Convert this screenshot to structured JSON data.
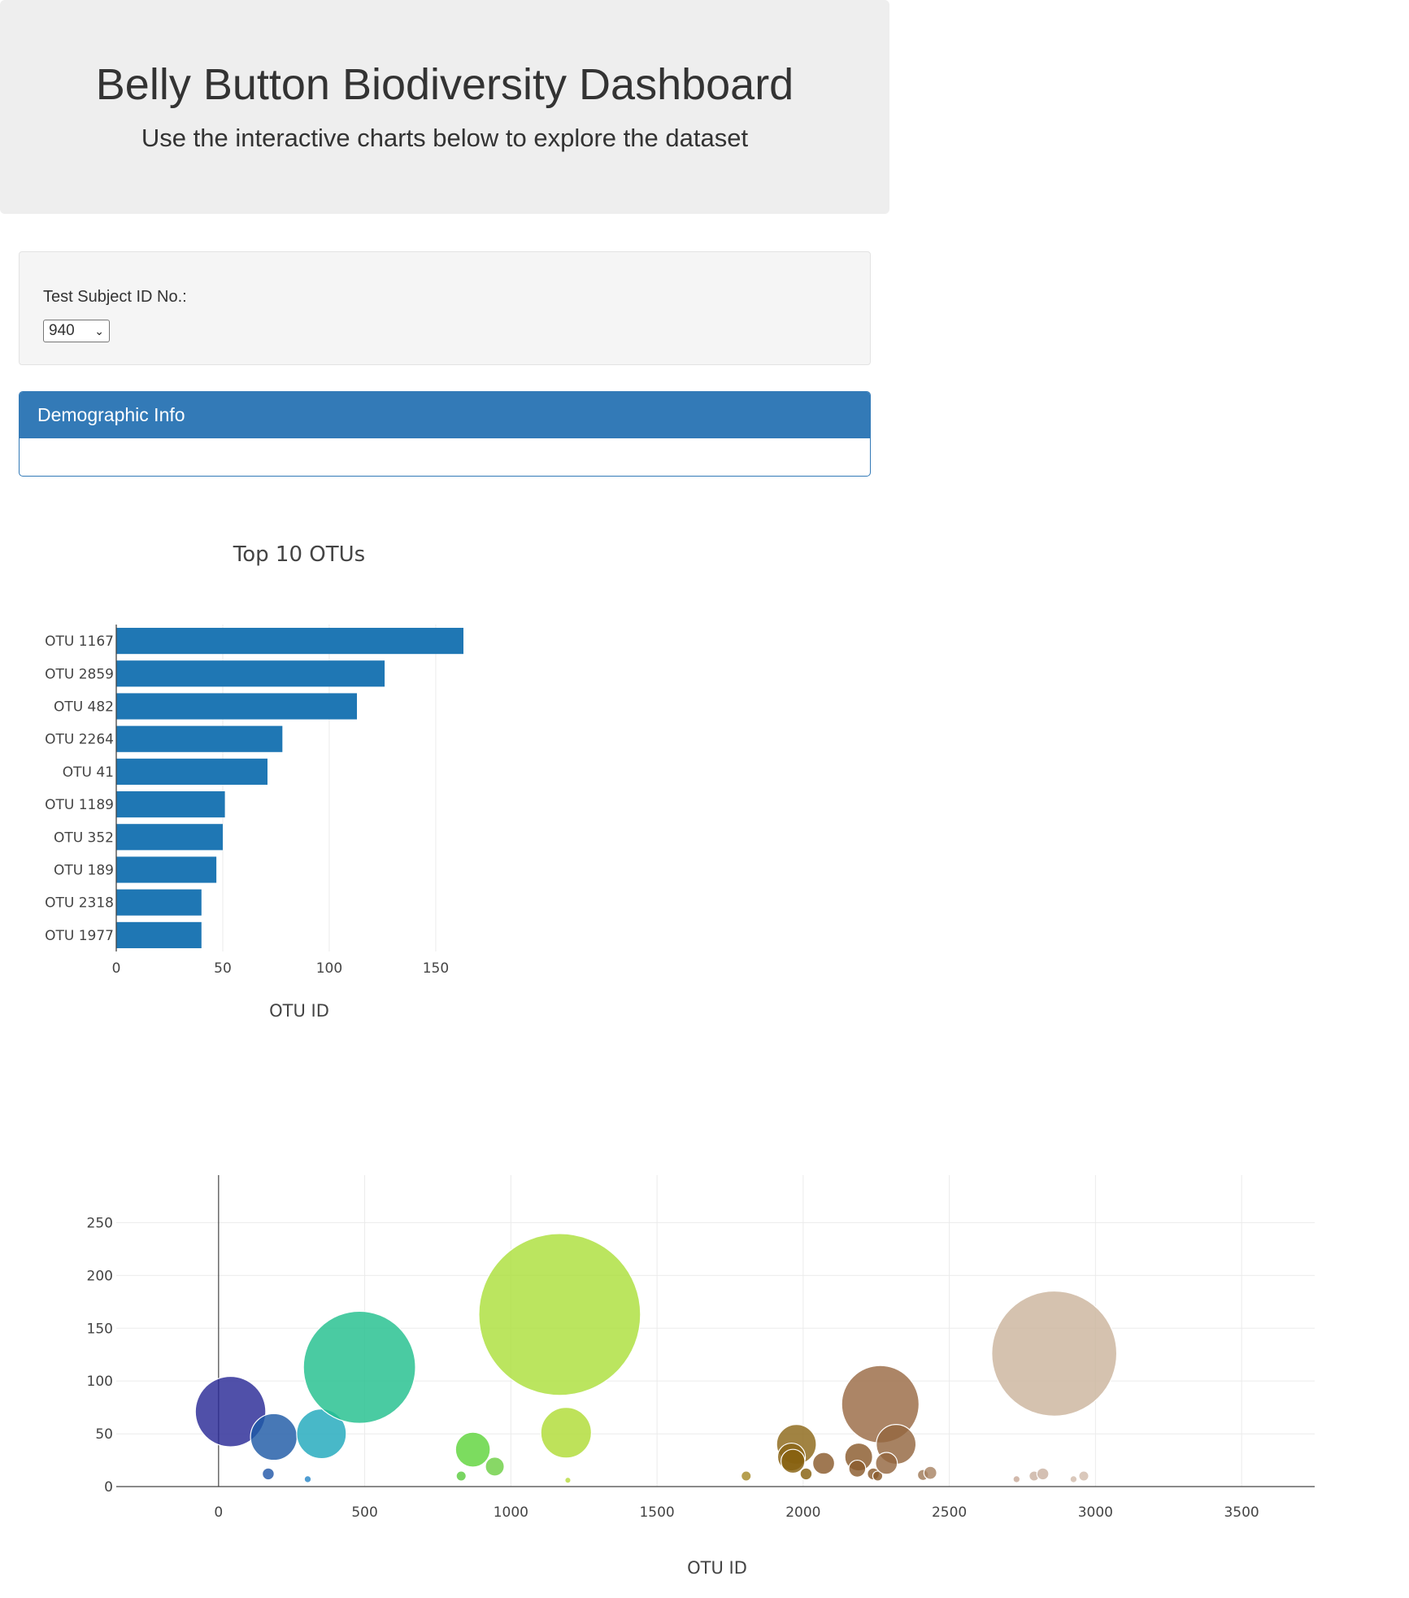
{
  "header": {
    "title": "Belly Button Biodiversity Dashboard",
    "subtitle": "Use the interactive charts below to explore the dataset"
  },
  "selector": {
    "label": "Test Subject ID No.:",
    "selected_value": "940"
  },
  "demographic_panel": {
    "title": "Demographic Info"
  },
  "chart_data": [
    {
      "type": "bar",
      "orientation": "horizontal",
      "title": "Top 10 OTUs",
      "xlabel": "OTU ID",
      "ylabel": "",
      "categories": [
        "OTU 1167",
        "OTU 2859",
        "OTU 482",
        "OTU 2264",
        "OTU 41",
        "OTU 1189",
        "OTU 352",
        "OTU 189",
        "OTU 2318",
        "OTU 1977"
      ],
      "values": [
        163,
        126,
        113,
        78,
        71,
        51,
        50,
        47,
        40,
        40
      ],
      "xlim": [
        0,
        163
      ],
      "xticks": [
        0,
        50,
        100,
        150
      ],
      "color": "#1f77b4",
      "grid": true
    },
    {
      "type": "scatter",
      "variant": "bubble",
      "title": "",
      "xlabel": "OTU ID",
      "ylabel": "",
      "xlim": [
        -350,
        3750
      ],
      "ylim": [
        0,
        295
      ],
      "xticks": [
        0,
        500,
        1000,
        1500,
        2000,
        2500,
        3000,
        3500
      ],
      "yticks": [
        0,
        50,
        100,
        150,
        200,
        250
      ],
      "grid": true,
      "points": [
        {
          "x": 41,
          "y": 71,
          "size": 71,
          "color": "#2a2a96"
        },
        {
          "x": 189,
          "y": 47,
          "size": 47,
          "color": "#1f5aa6"
        },
        {
          "x": 170,
          "y": 12,
          "size": 12,
          "color": "#2258a8"
        },
        {
          "x": 305,
          "y": 7,
          "size": 7,
          "color": "#2a88c8"
        },
        {
          "x": 352,
          "y": 50,
          "size": 50,
          "color": "#20a8bc"
        },
        {
          "x": 482,
          "y": 113,
          "size": 113,
          "color": "#22c08e"
        },
        {
          "x": 870,
          "y": 35,
          "size": 35,
          "color": "#5fd43c"
        },
        {
          "x": 945,
          "y": 19,
          "size": 19,
          "color": "#6ed044"
        },
        {
          "x": 830,
          "y": 10,
          "size": 10,
          "color": "#5ccc40"
        },
        {
          "x": 1167,
          "y": 163,
          "size": 163,
          "color": "#acdf3c"
        },
        {
          "x": 1189,
          "y": 51,
          "size": 51,
          "color": "#b0dc36"
        },
        {
          "x": 1195,
          "y": 6,
          "size": 6,
          "color": "#b8dc40"
        },
        {
          "x": 1805,
          "y": 10,
          "size": 10,
          "color": "#a68a28"
        },
        {
          "x": 1977,
          "y": 40,
          "size": 40,
          "color": "#8c6818"
        },
        {
          "x": 1960,
          "y": 28,
          "size": 28,
          "color": "#8a6416"
        },
        {
          "x": 1965,
          "y": 24,
          "size": 24,
          "color": "#86600f"
        },
        {
          "x": 2010,
          "y": 12,
          "size": 12,
          "color": "#86600f"
        },
        {
          "x": 2070,
          "y": 22,
          "size": 22,
          "color": "#8a5a2c"
        },
        {
          "x": 2190,
          "y": 28,
          "size": 28,
          "color": "#8a5a2c"
        },
        {
          "x": 2185,
          "y": 17,
          "size": 17,
          "color": "#8a5a2c"
        },
        {
          "x": 2240,
          "y": 12,
          "size": 12,
          "color": "#8a5a2c"
        },
        {
          "x": 2255,
          "y": 10,
          "size": 10,
          "color": "#8a5a2c"
        },
        {
          "x": 2264,
          "y": 78,
          "size": 78,
          "color": "#9a6a44"
        },
        {
          "x": 2318,
          "y": 40,
          "size": 40,
          "color": "#946640"
        },
        {
          "x": 2285,
          "y": 22,
          "size": 22,
          "color": "#946640"
        },
        {
          "x": 2410,
          "y": 11,
          "size": 11,
          "color": "#a07a58"
        },
        {
          "x": 2435,
          "y": 13,
          "size": 13,
          "color": "#a88464"
        },
        {
          "x": 2730,
          "y": 7,
          "size": 7,
          "color": "#c8aa98"
        },
        {
          "x": 2790,
          "y": 10,
          "size": 10,
          "color": "#cbb2a2"
        },
        {
          "x": 2820,
          "y": 12,
          "size": 12,
          "color": "#cbb2a2"
        },
        {
          "x": 2859,
          "y": 126,
          "size": 126,
          "color": "#ccb49e"
        },
        {
          "x": 2925,
          "y": 7,
          "size": 7,
          "color": "#d2bcac"
        },
        {
          "x": 2960,
          "y": 10,
          "size": 10,
          "color": "#d2bcac"
        }
      ]
    }
  ]
}
